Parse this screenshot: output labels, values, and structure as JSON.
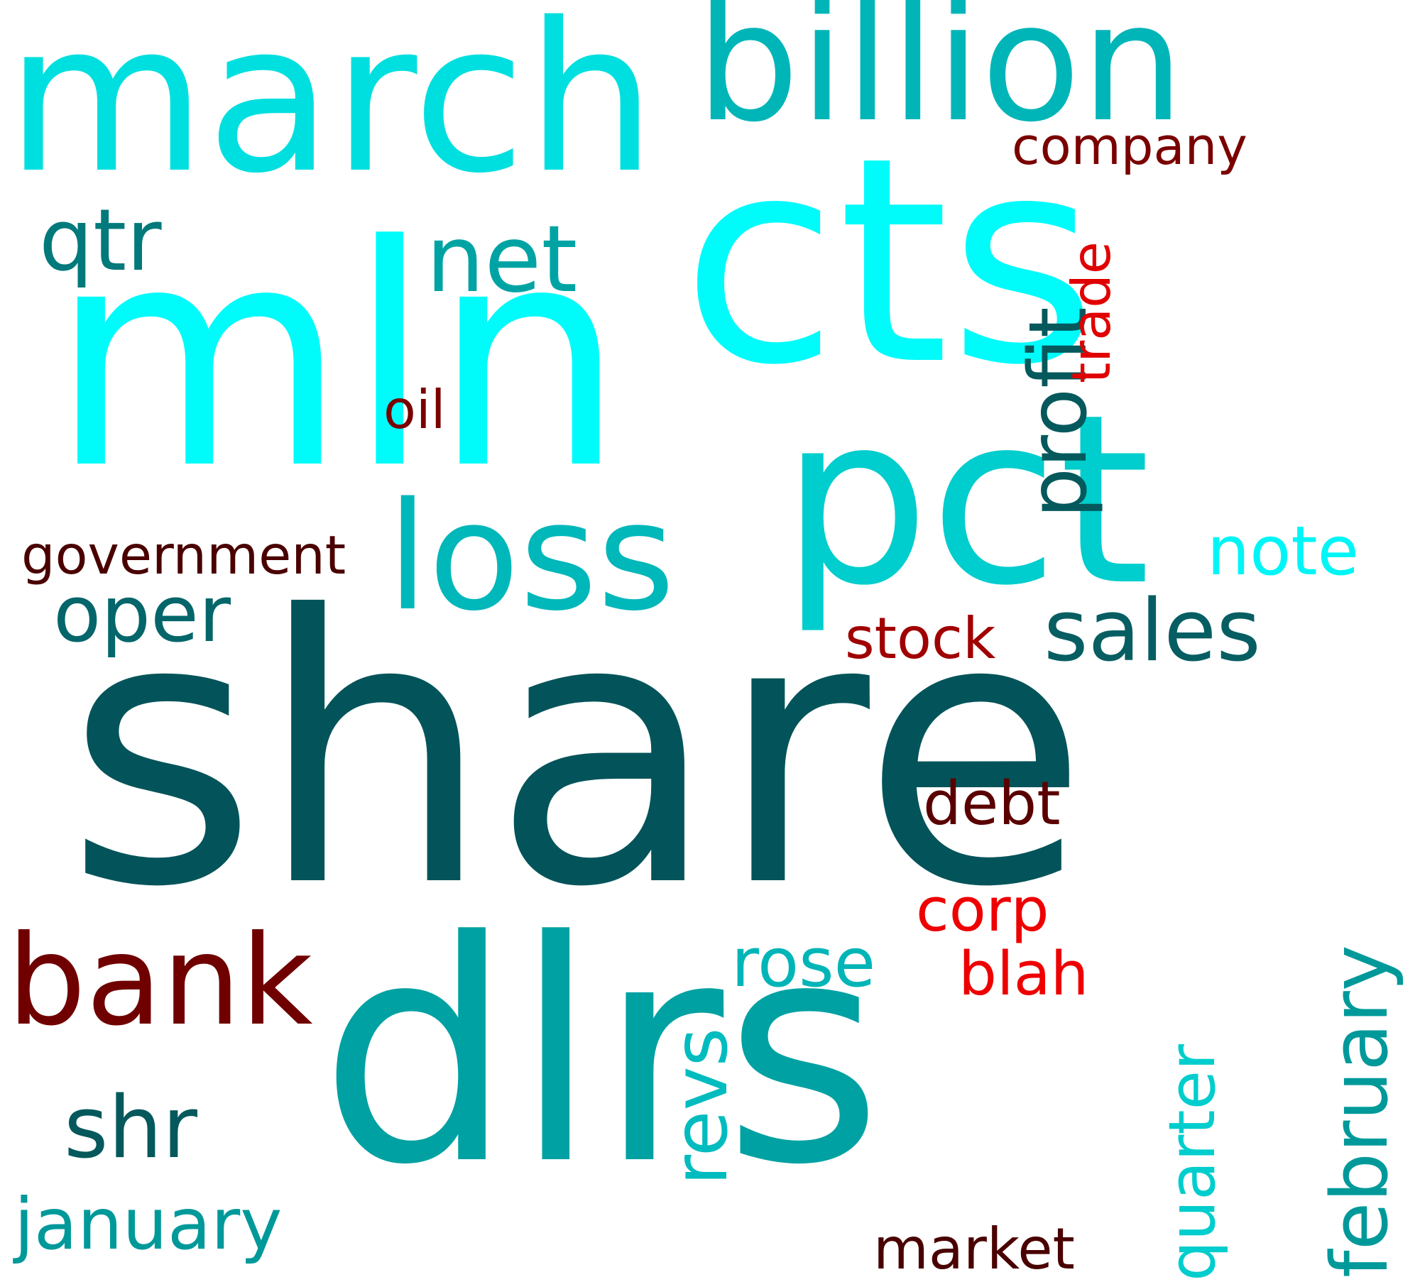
{
  "words": {
    "share": "share",
    "mln": "mln",
    "cts": "cts",
    "dlrs": "dlrs",
    "pct": "pct",
    "march": "march",
    "billion": "billion",
    "loss": "loss",
    "bank": "bank",
    "sales": "sales",
    "net": "net",
    "qtr": "qtr",
    "oper": "oper",
    "shr": "shr",
    "january": "january",
    "government": "government",
    "note": "note",
    "stock": "stock",
    "rose": "rose",
    "debt": "debt",
    "corp": "corp",
    "blah": "blah",
    "company": "company",
    "oil": "oil",
    "market": "market",
    "profit": "profit",
    "trade": "trade",
    "february": "february",
    "quarter": "quarter",
    "revs": "revs"
  },
  "palette": {
    "dark_teal": "#03545a",
    "cyan": "#00fbfb",
    "teal": "#00a1a2",
    "dark_red": "#700000",
    "red": "#ee0000"
  }
}
